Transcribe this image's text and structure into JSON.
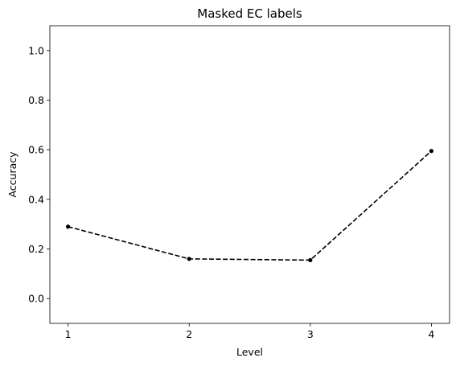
{
  "chart_data": {
    "type": "line",
    "title": "Masked EC labels",
    "xlabel": "Level",
    "ylabel": "Accuracy",
    "x": [
      1,
      2,
      3,
      4
    ],
    "series": [
      {
        "values": [
          0.29,
          0.16,
          0.155,
          0.595
        ],
        "color": "#000000",
        "linestyle": "dashed",
        "marker": "dot"
      }
    ],
    "xticks": [
      "1",
      "2",
      "3",
      "4"
    ],
    "yticks": [
      "0.0",
      "0.2",
      "0.4",
      "0.6",
      "0.8",
      "1.0"
    ],
    "ytick_values": [
      0.0,
      0.2,
      0.4,
      0.6,
      0.8,
      1.0
    ],
    "xlim": [
      0.85,
      4.15
    ],
    "ylim": [
      -0.1,
      1.1
    ],
    "grid": false,
    "legend": "none"
  }
}
